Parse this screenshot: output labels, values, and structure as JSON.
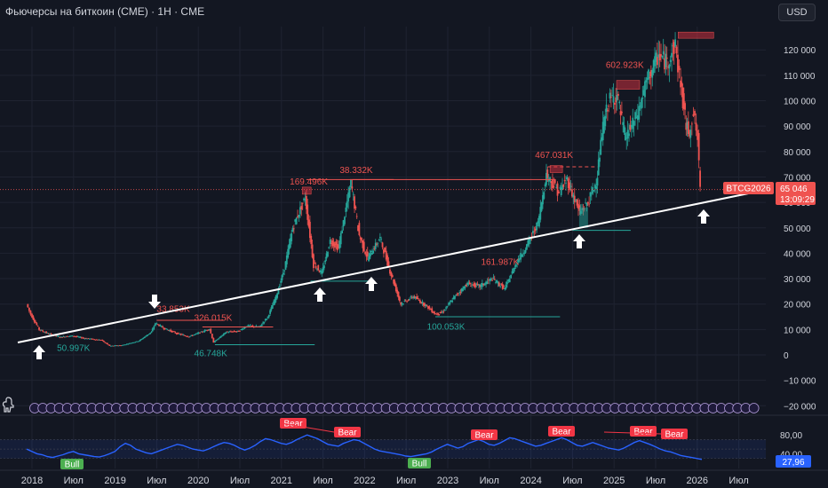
{
  "header": {
    "title": "Фьючерсы на биткоин (CME) · 1H · CME",
    "currency_label": "USD"
  },
  "price_axis": {
    "ticks": [
      "120 000",
      "110 000",
      "100 000",
      "90 000",
      "80 000",
      "70 000",
      "60 000",
      "50 000",
      "40 000",
      "30 000",
      "20 000",
      "10 000",
      "0",
      "−10 000",
      "−20 000"
    ]
  },
  "rsi_axis": {
    "ticks": [
      "80,00",
      "40,00"
    ],
    "current": "27,96"
  },
  "time_axis": {
    "ticks": [
      "2018",
      "Июл",
      "2019",
      "Июл",
      "2020",
      "Июл",
      "2021",
      "Июл",
      "2022",
      "Июл",
      "2023",
      "Июл",
      "2024",
      "Июл",
      "2025",
      "Июл",
      "2026",
      "Июл"
    ]
  },
  "last_price": {
    "symbol": "BTCG2026",
    "price": "65 046",
    "countdown": "13:09:29"
  },
  "annotations": {
    "highs": [
      "169.496K",
      "38.332K",
      "467.031K",
      "602.923K",
      "161.987K",
      "33.853K",
      "326.015K"
    ],
    "lows": [
      "50.997K",
      "46.748K",
      "100.053K"
    ]
  },
  "rsi_labels": {
    "bear": [
      "Bear",
      "Bear",
      "Bear",
      "Bear",
      "Bear",
      "Bear"
    ],
    "bull": [
      "Bull",
      "Bull"
    ]
  },
  "colors": {
    "up": "#26a69a",
    "down": "#ef5350",
    "rsi": "#2962ff",
    "bull_label": "#4caf50",
    "bear_label": "#f23645",
    "trendline": "#ffffff",
    "background": "#131722"
  },
  "icons": {
    "arrows": [
      "up-arrow-icon",
      "down-arrow-icon",
      "up-arrow-icon",
      "up-arrow-icon",
      "up-arrow-icon",
      "up-arrow-icon"
    ]
  }
}
